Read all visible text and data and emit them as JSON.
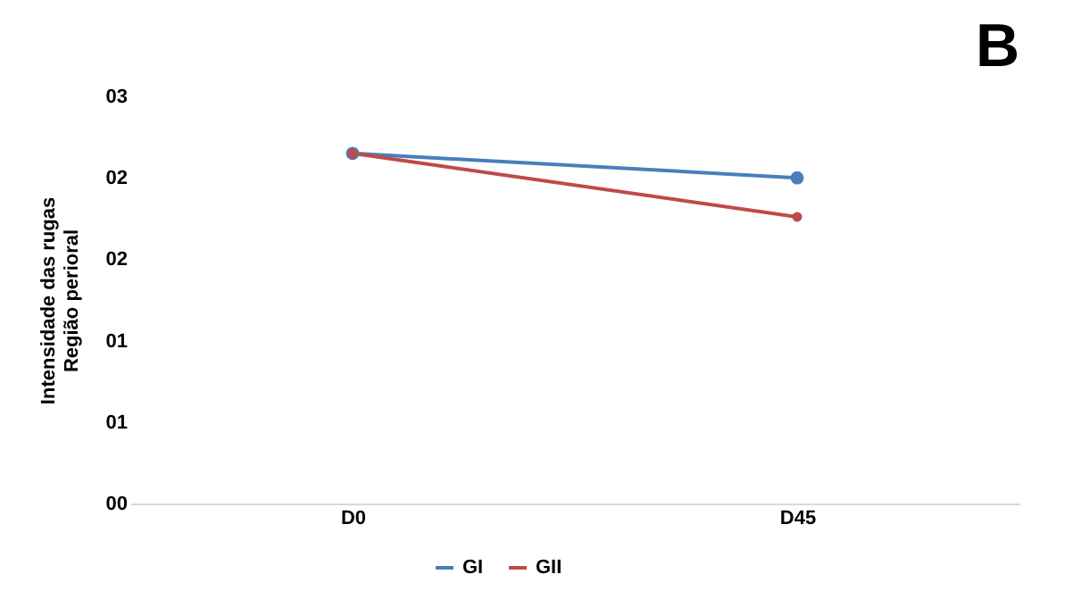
{
  "chart_data": {
    "type": "line",
    "title": "B",
    "ylabel": "Intensidade das rugas\nRegião perioral",
    "categories": [
      "D0",
      "D45"
    ],
    "series": [
      {
        "name": "GI",
        "color": "#4a7ebb",
        "values": [
          2.15,
          2.0
        ]
      },
      {
        "name": "GII",
        "color": "#be4b48",
        "values": [
          2.15,
          1.76
        ]
      }
    ],
    "ylim": [
      0,
      2.5
    ],
    "yticks": [
      {
        "value": 0,
        "label": "00"
      },
      {
        "value": 0.5,
        "label": "01"
      },
      {
        "value": 1,
        "label": "01"
      },
      {
        "value": 1.5,
        "label": "02"
      },
      {
        "value": 2,
        "label": "02"
      },
      {
        "value": 2.5,
        "label": "03"
      }
    ],
    "grid": false,
    "legend": "bottom",
    "marker": "circle",
    "line_style": "solid"
  }
}
